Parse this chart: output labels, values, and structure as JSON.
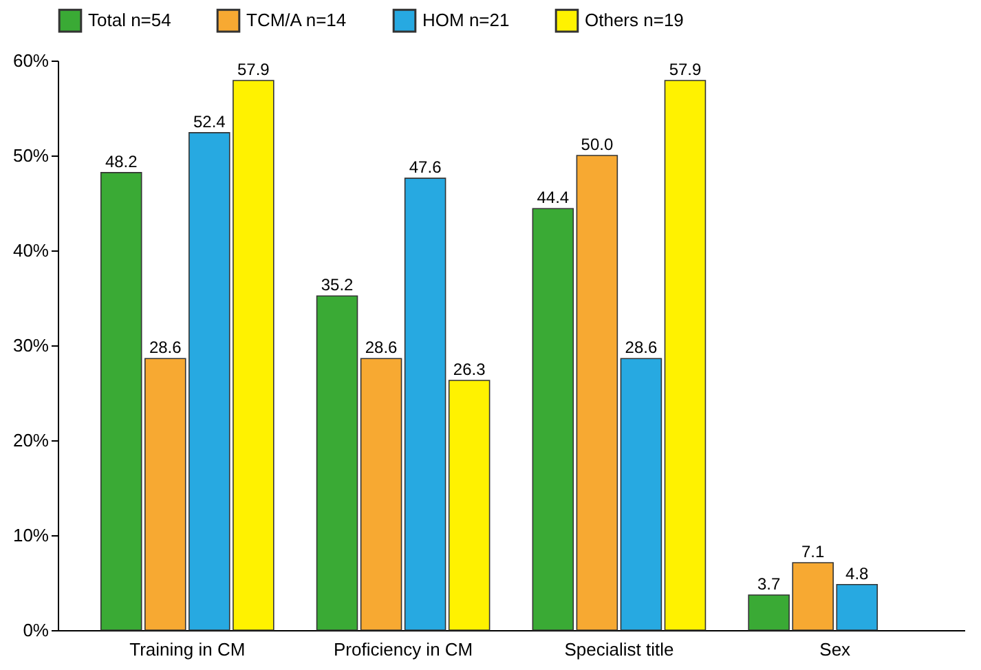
{
  "chart_data": {
    "type": "bar",
    "categories": [
      "Training in CM",
      "Proficiency in CM",
      "Specialist title",
      "Sex"
    ],
    "series": [
      {
        "name": "Total n=54",
        "color": "#3aaa35",
        "values": [
          48.2,
          35.2,
          44.4,
          3.7
        ],
        "value_labels": [
          "48.2",
          "35.2",
          "44.4",
          "3.7"
        ]
      },
      {
        "name": "TCM/A n=14",
        "color": "#f7a932",
        "values": [
          28.6,
          28.6,
          50.0,
          7.1
        ],
        "value_labels": [
          "28.6",
          "28.6",
          "50.0",
          "7.1"
        ]
      },
      {
        "name": "HOM n=21",
        "color": "#27a9e1",
        "values": [
          52.4,
          47.6,
          28.6,
          4.8
        ],
        "value_labels": [
          "52.4",
          "47.6",
          "28.6",
          "4.8"
        ]
      },
      {
        "name": "Others n=19",
        "color": "#fff200",
        "values": [
          57.9,
          26.3,
          57.9,
          null
        ],
        "value_labels": [
          "57.9",
          "26.3",
          "57.9",
          null
        ]
      }
    ],
    "ylim": [
      0,
      60
    ],
    "yticks": [
      {
        "value": 0,
        "label": "0%"
      },
      {
        "value": 10,
        "label": "10%"
      },
      {
        "value": 20,
        "label": "20%"
      },
      {
        "value": 30,
        "label": "30%"
      },
      {
        "value": 40,
        "label": "40%"
      },
      {
        "value": 50,
        "label": "50%"
      },
      {
        "value": 60,
        "label": "60%"
      }
    ],
    "grid": false,
    "legend": "top"
  }
}
